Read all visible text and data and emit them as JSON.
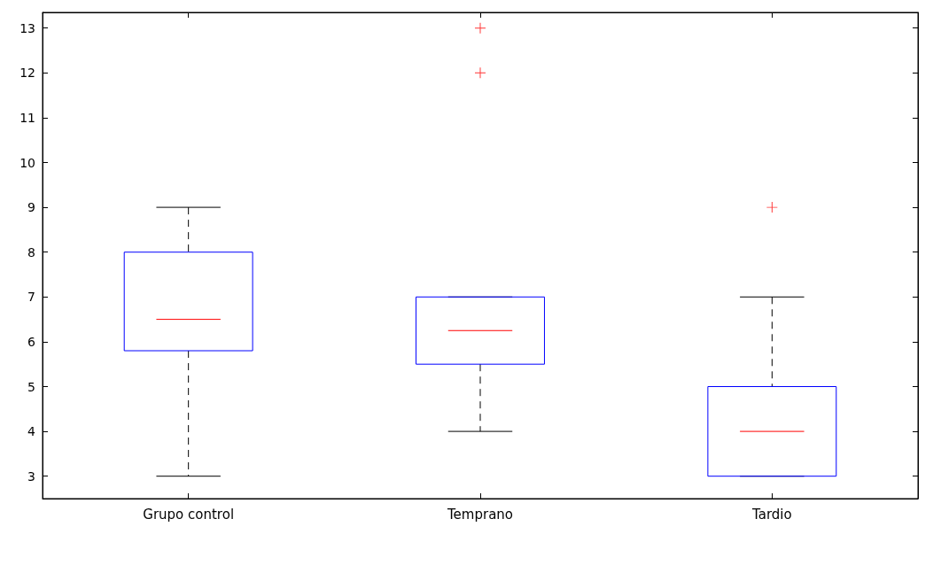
{
  "chart_data": {
    "type": "box",
    "categories": [
      "Grupo control",
      "Temprano",
      "Tardio"
    ],
    "series": [
      {
        "color": "#0000ff",
        "boxes": [
          {
            "low": 3,
            "q1": 5.8,
            "median": 6.5,
            "q3": 8,
            "high": 9
          },
          {
            "low": 4,
            "q1": 5.5,
            "median": 6.25,
            "q3": 7,
            "high": 7,
            "outliers": [
              12,
              13
            ]
          },
          {
            "low": 3,
            "q1": 3,
            "median": 4,
            "q3": 5,
            "high": 7,
            "outliers": [
              9
            ]
          }
        ]
      }
    ],
    "ylim": [
      2.5,
      13.35
    ],
    "yticks": [
      3,
      4,
      5,
      6,
      7,
      8,
      9,
      10,
      11,
      12,
      13
    ],
    "grid": false,
    "marker": "cross"
  }
}
